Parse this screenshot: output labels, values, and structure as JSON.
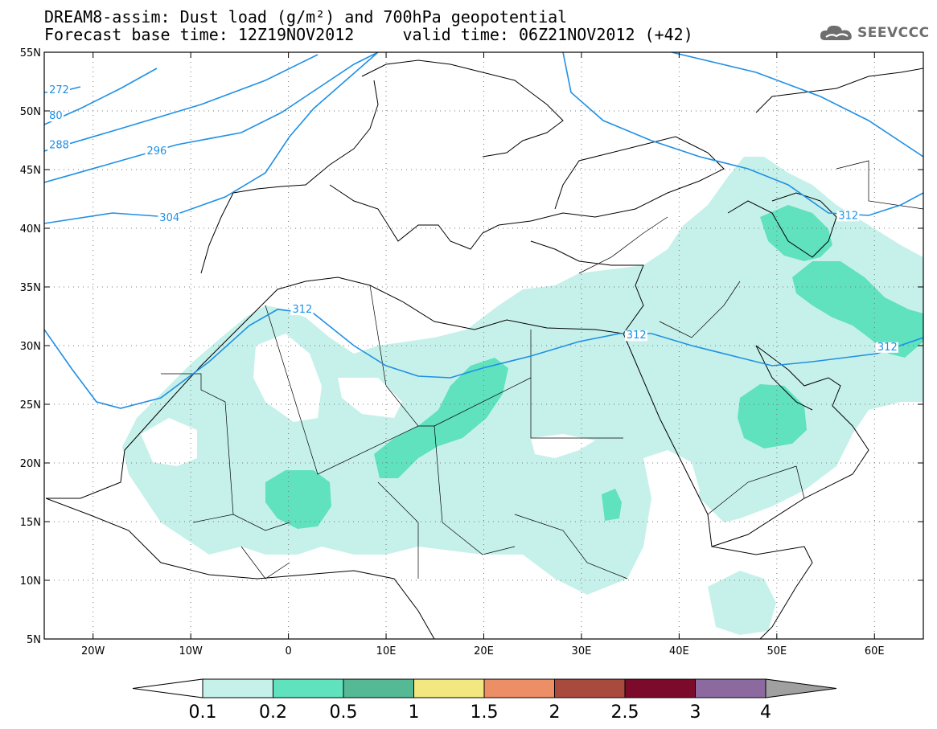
{
  "title": {
    "line1": "DREAM8-assim: Dust load (g/m²) and 700hPa geopotential",
    "line2": "Forecast base time: 12Z19NOV2012     valid time: 06Z21NOV2012 (+42)"
  },
  "logo": {
    "text": "SEEVCCC",
    "icon": "cloud-icon"
  },
  "map": {
    "lon_range": [
      -25,
      65
    ],
    "lat_range": [
      5,
      55
    ],
    "lon_ticks": [
      {
        "value": -20,
        "label": "20W"
      },
      {
        "value": -10,
        "label": "10W"
      },
      {
        "value": 0,
        "label": "0"
      },
      {
        "value": 10,
        "label": "10E"
      },
      {
        "value": 20,
        "label": "20E"
      },
      {
        "value": 30,
        "label": "30E"
      },
      {
        "value": 40,
        "label": "40E"
      },
      {
        "value": 50,
        "label": "50E"
      },
      {
        "value": 60,
        "label": "60E"
      }
    ],
    "lat_ticks": [
      {
        "value": 55,
        "label": "55N"
      },
      {
        "value": 50,
        "label": "50N"
      },
      {
        "value": 45,
        "label": "45N"
      },
      {
        "value": 40,
        "label": "40N"
      },
      {
        "value": 35,
        "label": "35N"
      },
      {
        "value": 30,
        "label": "30N"
      },
      {
        "value": 25,
        "label": "25N"
      },
      {
        "value": 20,
        "label": "20N"
      },
      {
        "value": 15,
        "label": "15N"
      },
      {
        "value": 10,
        "label": "10N"
      },
      {
        "value": 5,
        "label": "5N"
      }
    ],
    "grid": "dotted",
    "contour_color": "#1e90e6",
    "contour_labels": [
      {
        "text": "272",
        "lon": -24.5,
        "lat": 51.5
      },
      {
        "text": "80",
        "lon": -24.5,
        "lat": 49.3
      },
      {
        "text": "288",
        "lon": -24.5,
        "lat": 46.8
      },
      {
        "text": "296",
        "lon": -14.5,
        "lat": 46.3
      },
      {
        "text": "304",
        "lon": -13.2,
        "lat": 40.6
      },
      {
        "text": "312",
        "lon": 0.4,
        "lat": 32.8
      },
      {
        "text": "312",
        "lon": 34.6,
        "lat": 30.6
      },
      {
        "text": "312",
        "lon": 56.3,
        "lat": 40.8
      },
      {
        "text": "312",
        "lon": 60.3,
        "lat": 29.6
      }
    ]
  },
  "colorbar": {
    "levels": [
      "0.1",
      "0.2",
      "0.5",
      "1",
      "1.5",
      "2",
      "2.5",
      "3",
      "4"
    ],
    "colors": [
      "#ffffff",
      "#c6f1ea",
      "#5fe2bd",
      "#56b995",
      "#f3e880",
      "#ec8e66",
      "#a84a3e",
      "#7c0a2a",
      "#8c6a9f",
      "#a0a0a0"
    ]
  }
}
